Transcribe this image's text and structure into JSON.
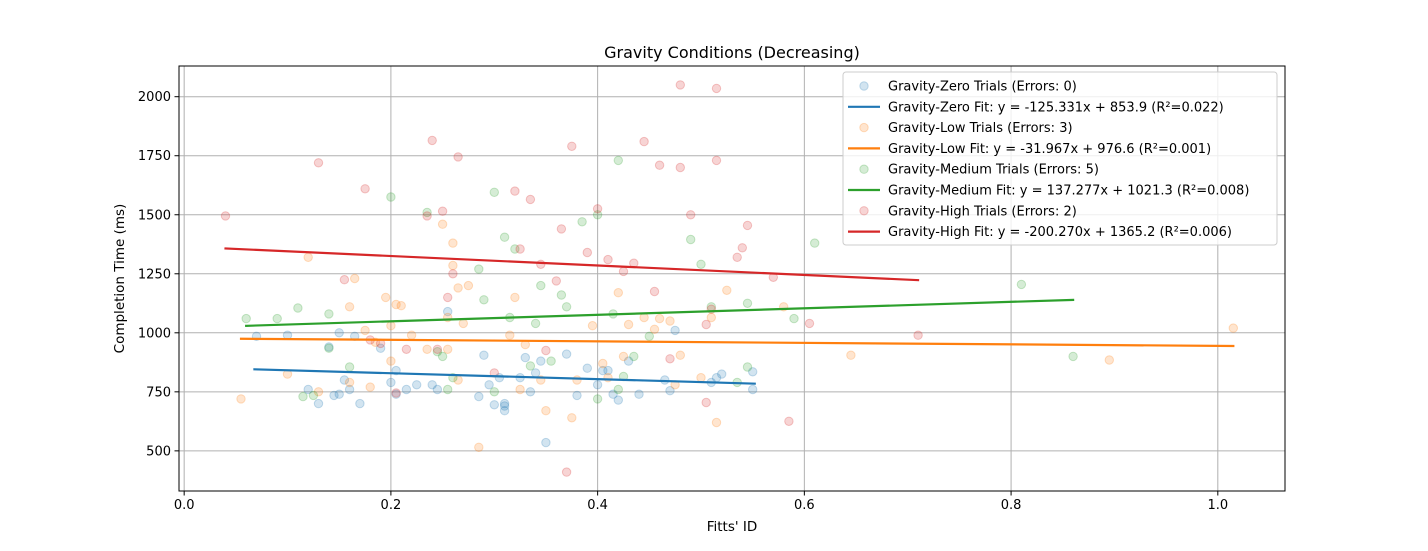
{
  "chart_data": {
    "type": "scatter",
    "title": "Gravity Conditions (Decreasing)",
    "xlabel": "Fitts' ID",
    "ylabel": "Completion Time (ms)",
    "xlim": [
      -0.005,
      1.065
    ],
    "ylim": [
      330,
      2130
    ],
    "xticks": [
      0.0,
      0.2,
      0.4,
      0.6,
      0.8,
      1.0
    ],
    "xtick_labels": [
      "0.0",
      "0.2",
      "0.4",
      "0.6",
      "0.8",
      "1.0"
    ],
    "yticks": [
      500,
      750,
      1000,
      1250,
      1500,
      1750,
      2000
    ],
    "ytick_labels": [
      "500",
      "750",
      "1000",
      "1250",
      "1500",
      "1750",
      "2000"
    ],
    "grid": true,
    "legend_position": "top-right",
    "point_alpha": 0.2,
    "series": [
      {
        "name": "Gravity-Zero",
        "color": "#1f77b4",
        "scatter_label": "Gravity-Zero Trials (Errors: 0)",
        "fit_label": "Gravity-Zero Fit: y = -125.331x + 853.9 (R²=0.022)",
        "fit": {
          "slope": -125.331,
          "intercept": 853.9,
          "x_range": [
            0.068,
            0.552
          ]
        },
        "points": [
          [
            0.07,
            985
          ],
          [
            0.1,
            990
          ],
          [
            0.12,
            760
          ],
          [
            0.13,
            700
          ],
          [
            0.14,
            940
          ],
          [
            0.145,
            735
          ],
          [
            0.15,
            740
          ],
          [
            0.15,
            1000
          ],
          [
            0.155,
            800
          ],
          [
            0.16,
            760
          ],
          [
            0.165,
            985
          ],
          [
            0.17,
            700
          ],
          [
            0.19,
            935
          ],
          [
            0.2,
            790
          ],
          [
            0.205,
            740
          ],
          [
            0.205,
            840
          ],
          [
            0.215,
            760
          ],
          [
            0.225,
            780
          ],
          [
            0.24,
            780
          ],
          [
            0.245,
            760
          ],
          [
            0.255,
            1090
          ],
          [
            0.285,
            730
          ],
          [
            0.29,
            905
          ],
          [
            0.295,
            780
          ],
          [
            0.3,
            695
          ],
          [
            0.305,
            810
          ],
          [
            0.31,
            700
          ],
          [
            0.31,
            690
          ],
          [
            0.31,
            670
          ],
          [
            0.325,
            810
          ],
          [
            0.33,
            895
          ],
          [
            0.335,
            750
          ],
          [
            0.34,
            830
          ],
          [
            0.345,
            880
          ],
          [
            0.35,
            535
          ],
          [
            0.37,
            910
          ],
          [
            0.38,
            735
          ],
          [
            0.39,
            850
          ],
          [
            0.4,
            780
          ],
          [
            0.405,
            840
          ],
          [
            0.41,
            840
          ],
          [
            0.415,
            740
          ],
          [
            0.42,
            715
          ],
          [
            0.43,
            880
          ],
          [
            0.44,
            740
          ],
          [
            0.465,
            800
          ],
          [
            0.47,
            755
          ],
          [
            0.475,
            1010
          ],
          [
            0.51,
            790
          ],
          [
            0.515,
            810
          ],
          [
            0.52,
            825
          ],
          [
            0.55,
            760
          ],
          [
            0.55,
            835
          ]
        ]
      },
      {
        "name": "Gravity-Low",
        "color": "#ff7f0e",
        "scatter_label": "Gravity-Low Trials (Errors: 3)",
        "fit_label": "Gravity-Low Fit: y = -31.967x + 976.6 (R²=0.001)",
        "fit": {
          "slope": -31.967,
          "intercept": 976.6,
          "x_range": [
            0.055,
            1.015
          ]
        },
        "points": [
          [
            0.055,
            720
          ],
          [
            0.1,
            825
          ],
          [
            0.12,
            1320
          ],
          [
            0.13,
            750
          ],
          [
            0.16,
            1110
          ],
          [
            0.16,
            790
          ],
          [
            0.165,
            1230
          ],
          [
            0.175,
            1010
          ],
          [
            0.18,
            770
          ],
          [
            0.185,
            960
          ],
          [
            0.195,
            1150
          ],
          [
            0.2,
            880
          ],
          [
            0.2,
            1030
          ],
          [
            0.205,
            1120
          ],
          [
            0.21,
            1115
          ],
          [
            0.22,
            990
          ],
          [
            0.235,
            930
          ],
          [
            0.25,
            1460
          ],
          [
            0.255,
            930
          ],
          [
            0.255,
            1065
          ],
          [
            0.26,
            1380
          ],
          [
            0.26,
            1285
          ],
          [
            0.265,
            1190
          ],
          [
            0.265,
            800
          ],
          [
            0.27,
            1040
          ],
          [
            0.275,
            1200
          ],
          [
            0.285,
            515
          ],
          [
            0.315,
            990
          ],
          [
            0.32,
            1150
          ],
          [
            0.325,
            760
          ],
          [
            0.33,
            950
          ],
          [
            0.345,
            800
          ],
          [
            0.35,
            670
          ],
          [
            0.375,
            640
          ],
          [
            0.38,
            800
          ],
          [
            0.395,
            1030
          ],
          [
            0.405,
            870
          ],
          [
            0.41,
            810
          ],
          [
            0.42,
            1170
          ],
          [
            0.425,
            900
          ],
          [
            0.43,
            1035
          ],
          [
            0.445,
            1065
          ],
          [
            0.455,
            1015
          ],
          [
            0.46,
            1060
          ],
          [
            0.47,
            1050
          ],
          [
            0.475,
            780
          ],
          [
            0.48,
            905
          ],
          [
            0.5,
            810
          ],
          [
            0.51,
            1065
          ],
          [
            0.515,
            620
          ],
          [
            0.525,
            1180
          ],
          [
            0.58,
            1110
          ],
          [
            0.645,
            905
          ],
          [
            0.895,
            885
          ],
          [
            1.015,
            1020
          ]
        ]
      },
      {
        "name": "Gravity-Medium",
        "color": "#2ca02c",
        "scatter_label": "Gravity-Medium Trials (Errors: 5)",
        "fit_label": "Gravity-Medium Fit: y = 137.277x + 1021.3 (R²=0.008)",
        "fit": {
          "slope": 137.277,
          "intercept": 1021.3,
          "x_range": [
            0.06,
            0.86
          ]
        },
        "points": [
          [
            0.06,
            1060
          ],
          [
            0.09,
            1060
          ],
          [
            0.11,
            1105
          ],
          [
            0.115,
            730
          ],
          [
            0.125,
            735
          ],
          [
            0.14,
            1080
          ],
          [
            0.14,
            935
          ],
          [
            0.16,
            855
          ],
          [
            0.2,
            1575
          ],
          [
            0.235,
            1510
          ],
          [
            0.245,
            920
          ],
          [
            0.25,
            900
          ],
          [
            0.255,
            760
          ],
          [
            0.26,
            810
          ],
          [
            0.285,
            1270
          ],
          [
            0.29,
            1140
          ],
          [
            0.3,
            1595
          ],
          [
            0.3,
            750
          ],
          [
            0.31,
            1405
          ],
          [
            0.315,
            1065
          ],
          [
            0.32,
            1355
          ],
          [
            0.335,
            860
          ],
          [
            0.34,
            1040
          ],
          [
            0.345,
            1200
          ],
          [
            0.355,
            880
          ],
          [
            0.365,
            1160
          ],
          [
            0.37,
            1110
          ],
          [
            0.385,
            1470
          ],
          [
            0.4,
            1500
          ],
          [
            0.4,
            720
          ],
          [
            0.415,
            1080
          ],
          [
            0.42,
            760
          ],
          [
            0.42,
            1730
          ],
          [
            0.425,
            815
          ],
          [
            0.435,
            900
          ],
          [
            0.45,
            985
          ],
          [
            0.49,
            1395
          ],
          [
            0.5,
            1290
          ],
          [
            0.51,
            1110
          ],
          [
            0.535,
            790
          ],
          [
            0.545,
            1125
          ],
          [
            0.545,
            855
          ],
          [
            0.59,
            1060
          ],
          [
            0.61,
            1380
          ],
          [
            0.81,
            1205
          ],
          [
            0.86,
            900
          ]
        ]
      },
      {
        "name": "Gravity-High",
        "color": "#d62728",
        "scatter_label": "Gravity-High Trials (Errors: 2)",
        "fit_label": "Gravity-High Fit: y = -200.270x + 1365.2 (R²=0.006)",
        "fit": {
          "slope": -200.27,
          "intercept": 1365.2,
          "x_range": [
            0.04,
            0.71
          ]
        },
        "points": [
          [
            0.04,
            1495
          ],
          [
            0.13,
            1720
          ],
          [
            0.155,
            1225
          ],
          [
            0.175,
            1610
          ],
          [
            0.18,
            970
          ],
          [
            0.19,
            955
          ],
          [
            0.205,
            745
          ],
          [
            0.215,
            930
          ],
          [
            0.235,
            1495
          ],
          [
            0.24,
            1815
          ],
          [
            0.245,
            930
          ],
          [
            0.25,
            1515
          ],
          [
            0.255,
            1150
          ],
          [
            0.26,
            1250
          ],
          [
            0.265,
            1745
          ],
          [
            0.3,
            830
          ],
          [
            0.32,
            1600
          ],
          [
            0.325,
            1355
          ],
          [
            0.335,
            1565
          ],
          [
            0.345,
            1290
          ],
          [
            0.35,
            925
          ],
          [
            0.36,
            1220
          ],
          [
            0.365,
            1440
          ],
          [
            0.37,
            410
          ],
          [
            0.375,
            1790
          ],
          [
            0.39,
            1340
          ],
          [
            0.4,
            1525
          ],
          [
            0.41,
            1310
          ],
          [
            0.425,
            1260
          ],
          [
            0.435,
            1295
          ],
          [
            0.445,
            1810
          ],
          [
            0.455,
            1175
          ],
          [
            0.46,
            1710
          ],
          [
            0.47,
            890
          ],
          [
            0.48,
            2050
          ],
          [
            0.48,
            1700
          ],
          [
            0.49,
            1500
          ],
          [
            0.505,
            1035
          ],
          [
            0.505,
            705
          ],
          [
            0.51,
            1100
          ],
          [
            0.515,
            2035
          ],
          [
            0.515,
            1730
          ],
          [
            0.535,
            1320
          ],
          [
            0.54,
            1360
          ],
          [
            0.545,
            1455
          ],
          [
            0.57,
            1235
          ],
          [
            0.585,
            625
          ],
          [
            0.605,
            1040
          ],
          [
            0.71,
            990
          ]
        ]
      }
    ]
  }
}
